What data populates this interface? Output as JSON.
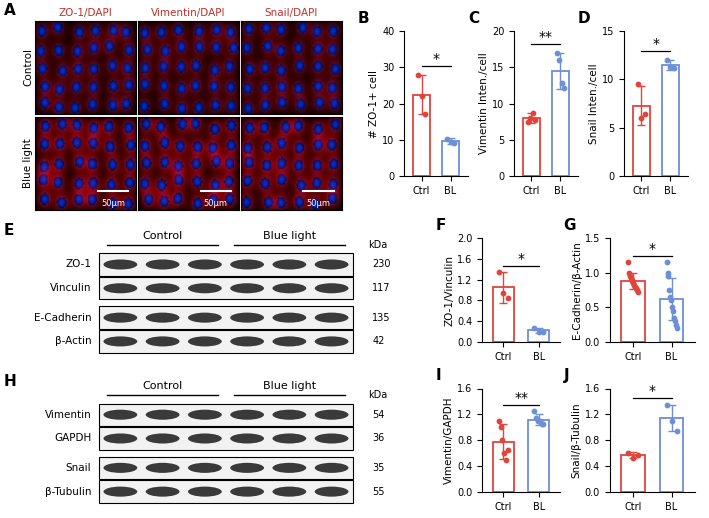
{
  "chart_data": [
    {
      "type": "bar",
      "panel": "B",
      "y_label": "# ZO-1+ cell",
      "categories": [
        "Ctrl",
        "BL"
      ],
      "values": [
        22.5,
        9.6
      ],
      "errors": [
        5.5,
        0.8
      ],
      "points": [
        [
          28,
          22,
          17
        ],
        [
          10.3,
          9.5,
          9
        ]
      ],
      "colors": [
        "#e0443a",
        "#6d8fd6"
      ],
      "ylim": [
        0,
        40
      ],
      "yticks": [
        0,
        10,
        20,
        30,
        40
      ],
      "significance": "*"
    },
    {
      "type": "bar",
      "panel": "C",
      "y_label": "Vimentin Inten./cell",
      "categories": [
        "Ctrl",
        "BL"
      ],
      "values": [
        8,
        14.5
      ],
      "errors": [
        0.7,
        2.5
      ],
      "points": [
        [
          7.5,
          8,
          8.7,
          7.8
        ],
        [
          17,
          16,
          12.8,
          12.2
        ]
      ],
      "colors": [
        "#e0443a",
        "#6d8fd6"
      ],
      "ylim": [
        0,
        20
      ],
      "yticks": [
        0,
        5,
        10,
        15,
        20
      ],
      "significance": "**"
    },
    {
      "type": "bar",
      "panel": "D",
      "y_label": "Snail Inten./cell",
      "categories": [
        "Ctrl",
        "BL"
      ],
      "values": [
        7.3,
        11.5
      ],
      "errors": [
        2,
        0.5
      ],
      "points": [
        [
          9.5,
          6,
          6.4
        ],
        [
          12,
          11.3,
          11.2
        ]
      ],
      "colors": [
        "#e0443a",
        "#6d8fd6"
      ],
      "ylim": [
        0,
        15
      ],
      "yticks": [
        0,
        5,
        10,
        15
      ],
      "significance": "*"
    },
    {
      "type": "bar",
      "panel": "F",
      "y_label": "ZO-1/Vinculin",
      "categories": [
        "Ctrl",
        "BL"
      ],
      "values": [
        1.05,
        0.22
      ],
      "errors": [
        0.3,
        0.05
      ],
      "points": [
        [
          1.35,
          0.95,
          0.85
        ],
        [
          0.26,
          0.2,
          0.2
        ]
      ],
      "colors": [
        "#e0443a",
        "#6d8fd6"
      ],
      "ylim": [
        0,
        2
      ],
      "yticks": [
        {
          "value": 0,
          "label": "0.0"
        },
        0.4,
        0.8,
        1.2,
        1.6,
        {
          "value": 2,
          "label": "2.0"
        }
      ],
      "significance": "*"
    },
    {
      "type": "bar",
      "panel": "G",
      "y_label": "E-Cadherin/β-Actin",
      "categories": [
        "Ctrl",
        "BL"
      ],
      "values": [
        0.88,
        0.62
      ],
      "errors": [
        0.12,
        0.3
      ],
      "points": [
        [
          1.15,
          1.0,
          0.95,
          0.92,
          0.9,
          0.88,
          0.85,
          0.82,
          0.8,
          0.78,
          0.75,
          0.72
        ],
        [
          1.15,
          1.0,
          0.95,
          0.75,
          0.65,
          0.6,
          0.5,
          0.45,
          0.35,
          0.3,
          0.25,
          0.2
        ]
      ],
      "colors": [
        "#e0443a",
        "#6d8fd6"
      ],
      "ylim": [
        0,
        1.5
      ],
      "yticks": [
        {
          "value": 0,
          "label": "0.0"
        },
        0.5,
        {
          "value": 1,
          "label": "1.0"
        },
        1.5
      ],
      "significance": "*"
    },
    {
      "type": "bar",
      "panel": "I",
      "y_label": "Vimentin/GAPDH",
      "categories": [
        "Ctrl",
        "BL"
      ],
      "values": [
        0.78,
        1.12
      ],
      "errors": [
        0.27,
        0.08
      ],
      "points": [
        [
          1.1,
          1.0,
          0.8,
          0.6,
          0.5,
          0.65
        ],
        [
          1.25,
          1.15,
          1.1,
          1.1,
          1.05,
          1.05
        ]
      ],
      "colors": [
        "#e0443a",
        "#6d8fd6"
      ],
      "ylim": [
        0,
        1.6
      ],
      "yticks": [
        {
          "value": 0,
          "label": "0.0"
        },
        0.4,
        0.8,
        1.2,
        1.6
      ],
      "significance": "**"
    },
    {
      "type": "bar",
      "panel": "J",
      "y_label": "Snail/β-Tubulin",
      "categories": [
        "Ctrl",
        "BL"
      ],
      "values": [
        0.57,
        1.15
      ],
      "errors": [
        0.05,
        0.2
      ],
      "points": [
        [
          0.6,
          0.52,
          0.58
        ],
        [
          1.35,
          1.1,
          0.95
        ]
      ],
      "colors": [
        "#e0443a",
        "#6d8fd6"
      ],
      "ylim": [
        0,
        1.6
      ],
      "yticks": [
        {
          "value": 0,
          "label": "0.0"
        },
        0.4,
        0.8,
        1.2,
        1.6
      ],
      "significance": "*"
    }
  ],
  "micrographs": {
    "panel": "A",
    "columns": [
      "ZO-1/DAPI",
      "Vimentin/DAPI",
      "Snail/DAPI"
    ],
    "rows": [
      "Control",
      "Blue light"
    ],
    "scale_bar": "50μm"
  },
  "blots": [
    {
      "panel": "E",
      "groups": [
        "Control",
        "Blue light"
      ],
      "unit": "kDa",
      "rows": [
        {
          "label": "ZO-1",
          "kDa": 230
        },
        {
          "label": "Vinculin",
          "kDa": 117
        },
        {
          "label": "E-Cadherin",
          "kDa": 135
        },
        {
          "label": "β-Actin",
          "kDa": 42
        }
      ]
    },
    {
      "panel": "H",
      "groups": [
        "Control",
        "Blue light"
      ],
      "unit": "kDa",
      "rows": [
        {
          "label": "Vimentin",
          "kDa": 54
        },
        {
          "label": "GAPDH",
          "kDa": 36
        },
        {
          "label": "Snail",
          "kDa": 35
        },
        {
          "label": "β-Tubulin",
          "kDa": 55
        }
      ]
    }
  ]
}
